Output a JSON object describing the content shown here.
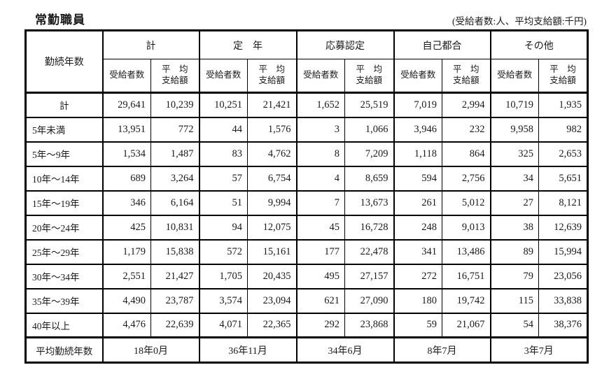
{
  "title": "常勤職員",
  "unit_note": "(受給者数:人、平均支給額:千円)",
  "table": {
    "row_header": "勤続年数",
    "groups": [
      {
        "key": "total",
        "label": "計"
      },
      {
        "key": "mandatory-retirement",
        "label": "定　年"
      },
      {
        "key": "application-certified",
        "label": "応募認定"
      },
      {
        "key": "personal-reasons",
        "label": "自己都合"
      },
      {
        "key": "other",
        "label": "その他"
      }
    ],
    "sub_headers": {
      "recipients": "受給者数",
      "avg_line1": "平　均",
      "avg_line2": "支給額"
    },
    "rows": [
      {
        "label": "計",
        "values": [
          "29,641",
          "10,239",
          "10,251",
          "21,421",
          "1,652",
          "25,519",
          "7,019",
          "2,994",
          "10,719",
          "1,935"
        ]
      },
      {
        "label": "5年未満",
        "values": [
          "13,951",
          "772",
          "44",
          "1,576",
          "3",
          "1,066",
          "3,946",
          "232",
          "9,958",
          "982"
        ]
      },
      {
        "label": "5年～9年",
        "values": [
          "1,534",
          "1,487",
          "83",
          "4,762",
          "8",
          "7,209",
          "1,118",
          "864",
          "325",
          "2,653"
        ]
      },
      {
        "label": "10年～14年",
        "values": [
          "689",
          "3,264",
          "57",
          "6,754",
          "4",
          "8,659",
          "594",
          "2,756",
          "34",
          "5,651"
        ]
      },
      {
        "label": "15年～19年",
        "values": [
          "346",
          "6,164",
          "51",
          "9,994",
          "7",
          "13,673",
          "261",
          "5,012",
          "27",
          "8,121"
        ]
      },
      {
        "label": "20年～24年",
        "values": [
          "425",
          "10,831",
          "94",
          "12,075",
          "45",
          "16,728",
          "248",
          "9,013",
          "38",
          "12,639"
        ]
      },
      {
        "label": "25年～29年",
        "values": [
          "1,179",
          "15,838",
          "572",
          "15,161",
          "177",
          "22,478",
          "341",
          "13,486",
          "89",
          "15,994"
        ]
      },
      {
        "label": "30年～34年",
        "values": [
          "2,551",
          "21,427",
          "1,705",
          "20,435",
          "495",
          "27,157",
          "272",
          "16,751",
          "79",
          "23,056"
        ]
      },
      {
        "label": "35年～39年",
        "values": [
          "4,490",
          "23,787",
          "3,574",
          "23,094",
          "621",
          "27,090",
          "180",
          "19,742",
          "115",
          "33,838"
        ]
      },
      {
        "label": "40年以上",
        "values": [
          "4,476",
          "22,639",
          "4,071",
          "22,365",
          "292",
          "23,868",
          "59",
          "21,067",
          "54",
          "38,376"
        ]
      }
    ],
    "footer": {
      "label": "平均勤続年数",
      "values": [
        "18年0月",
        "36年11月",
        "34年6月",
        "8年7月",
        "3年7月"
      ]
    }
  }
}
